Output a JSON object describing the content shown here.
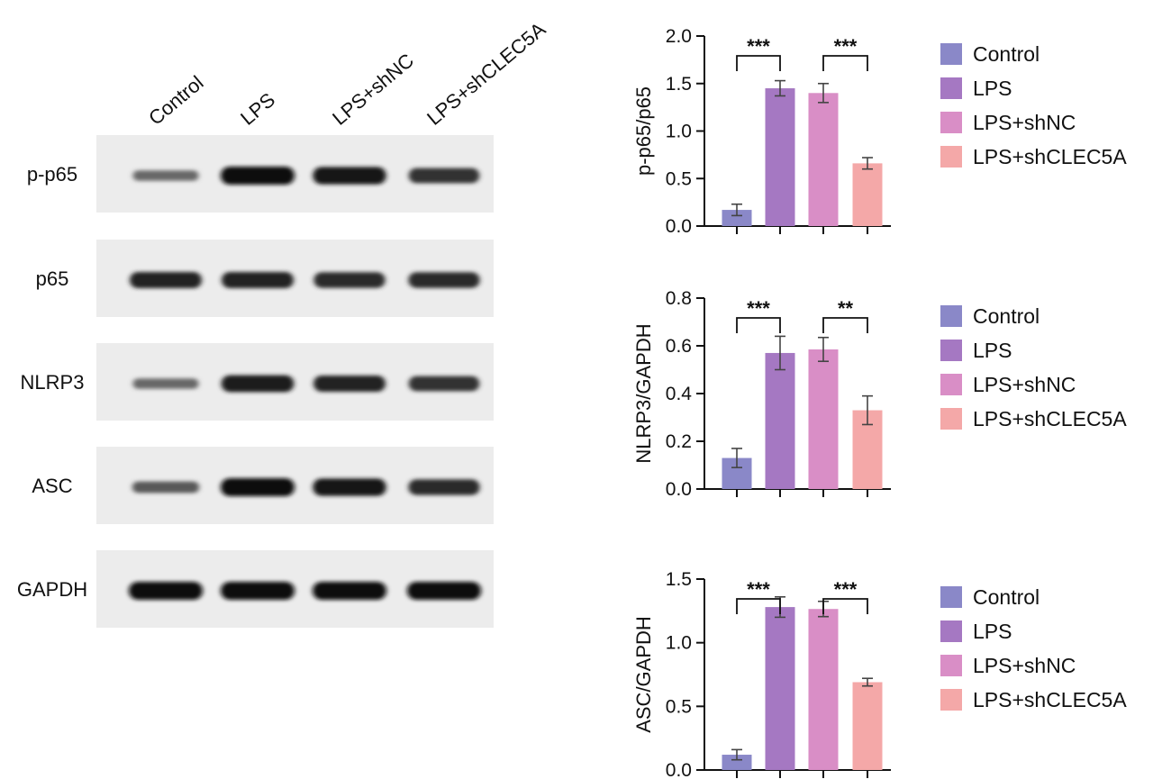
{
  "blot": {
    "lanes": [
      "Control",
      "LPS",
      "LPS+shNC",
      "LPS+shCLEC5A"
    ],
    "rows": [
      {
        "label": "p-p65",
        "intensity": [
          0.35,
          1.0,
          0.95,
          0.75
        ]
      },
      {
        "label": "p65",
        "intensity": [
          0.85,
          0.85,
          0.8,
          0.8
        ]
      },
      {
        "label": "NLRP3",
        "intensity": [
          0.35,
          0.9,
          0.85,
          0.75
        ]
      },
      {
        "label": "ASC",
        "intensity": [
          0.45,
          1.0,
          0.95,
          0.8
        ]
      },
      {
        "label": "GAPDH",
        "intensity": [
          1.0,
          1.0,
          1.0,
          1.0
        ]
      }
    ]
  },
  "colors": {
    "Control": "#8a88c8",
    "LPS": "#a578c2",
    "LPS+shNC": "#d98ec6",
    "LPS+shCLEC5A": "#f4a8a8"
  },
  "chart_data": [
    {
      "type": "bar",
      "categories": [
        "Control",
        "LPS",
        "LPS+shNC",
        "LPS+shCLEC5A"
      ],
      "values": [
        0.17,
        1.45,
        1.4,
        0.66
      ],
      "errors": [
        0.06,
        0.08,
        0.1,
        0.06
      ],
      "ylabel": "p-p65/p65",
      "ylim": [
        0,
        2.0
      ],
      "yticks": [
        "0.0",
        "0.5",
        "1.0",
        "1.5",
        "2.0"
      ],
      "significance": [
        {
          "from": 0,
          "to": 1,
          "label": "***"
        },
        {
          "from": 2,
          "to": 3,
          "label": "***"
        }
      ],
      "legend": [
        "Control",
        "LPS",
        "LPS+shNC",
        "LPS+shCLEC5A"
      ]
    },
    {
      "type": "bar",
      "categories": [
        "Control",
        "LPS",
        "LPS+shNC",
        "LPS+shCLEC5A"
      ],
      "values": [
        0.13,
        0.57,
        0.585,
        0.33
      ],
      "errors": [
        0.04,
        0.07,
        0.05,
        0.06
      ],
      "ylabel": "NLRP3/GAPDH",
      "ylim": [
        0,
        0.8
      ],
      "yticks": [
        "0.0",
        "0.2",
        "0.4",
        "0.6",
        "0.8"
      ],
      "significance": [
        {
          "from": 0,
          "to": 1,
          "label": "***"
        },
        {
          "from": 2,
          "to": 3,
          "label": "**"
        }
      ],
      "legend": [
        "Control",
        "LPS",
        "LPS+shNC",
        "LPS+shCLEC5A"
      ]
    },
    {
      "type": "bar",
      "categories": [
        "Control",
        "LPS",
        "LPS+shNC",
        "LPS+shCLEC5A"
      ],
      "values": [
        0.12,
        1.28,
        1.265,
        0.69
      ],
      "errors": [
        0.04,
        0.08,
        0.06,
        0.03
      ],
      "ylabel": "ASC/GAPDH",
      "ylim": [
        0,
        1.5
      ],
      "yticks": [
        "0.0",
        "0.5",
        "1.0",
        "1.5"
      ],
      "significance": [
        {
          "from": 0,
          "to": 1,
          "label": "***"
        },
        {
          "from": 2,
          "to": 3,
          "label": "***"
        }
      ],
      "legend": [
        "Control",
        "LPS",
        "LPS+shNC",
        "LPS+shCLEC5A"
      ]
    }
  ]
}
